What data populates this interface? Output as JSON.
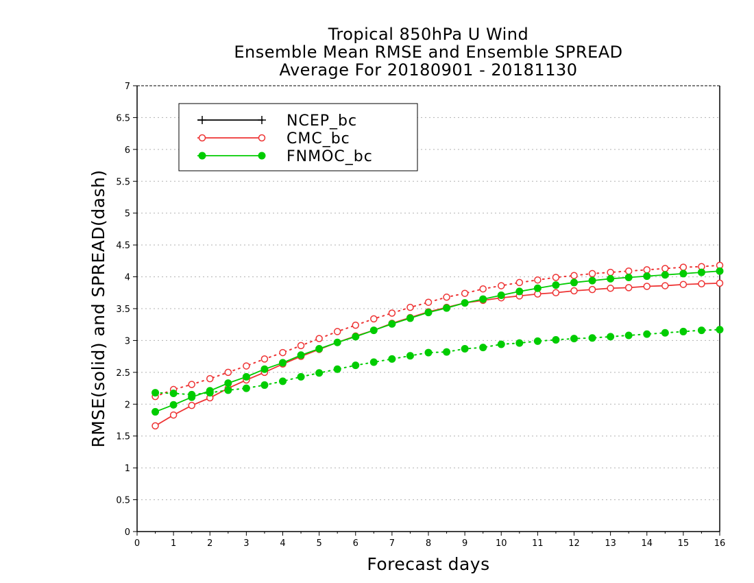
{
  "chart_data": {
    "type": "line",
    "title": [
      "Tropical 850hPa U Wind",
      "Ensemble Mean RMSE and Ensemble SPREAD",
      "Average For 20180901 - 20181130"
    ],
    "xlabel": "Forecast days",
    "ylabel": "RMSE(solid) and SPREAD(dash)",
    "xlim": [
      0,
      16
    ],
    "ylim": [
      0,
      7
    ],
    "xticks": [
      0,
      1,
      2,
      3,
      4,
      5,
      6,
      7,
      8,
      9,
      10,
      11,
      12,
      13,
      14,
      15,
      16
    ],
    "yticks": [
      0,
      0.5,
      1,
      1.5,
      2,
      2.5,
      3,
      3.5,
      4,
      4.5,
      5,
      5.5,
      6,
      6.5,
      7
    ],
    "ytick_labels": [
      "0",
      "0.5",
      "1",
      "1.5",
      "2",
      "2.5",
      "3",
      "3.5",
      "4",
      "4.5",
      "5",
      "5.5",
      "6",
      "6.5",
      "7"
    ],
    "grid": true,
    "legend_position": "top-left",
    "x": [
      0.5,
      1,
      1.5,
      2,
      2.5,
      3,
      3.5,
      4,
      4.5,
      5,
      5.5,
      6,
      6.5,
      7,
      7.5,
      8,
      8.5,
      9,
      9.5,
      10,
      10.5,
      11,
      11.5,
      12,
      12.5,
      13,
      13.5,
      14,
      14.5,
      15,
      15.5,
      16
    ],
    "series": [
      {
        "name": "NCEP_bc",
        "color": "#000000",
        "marker": "plus",
        "rmse": null,
        "spread": null
      },
      {
        "name": "CMC_bc",
        "color": "#ee3333",
        "marker": "open-circle",
        "rmse": [
          1.66,
          1.83,
          1.98,
          2.1,
          2.25,
          2.38,
          2.5,
          2.63,
          2.75,
          2.86,
          2.97,
          3.07,
          3.16,
          3.27,
          3.36,
          3.45,
          3.52,
          3.59,
          3.63,
          3.67,
          3.7,
          3.73,
          3.75,
          3.78,
          3.8,
          3.82,
          3.83,
          3.85,
          3.86,
          3.88,
          3.89,
          3.9
        ],
        "spread": [
          2.12,
          2.23,
          2.31,
          2.4,
          2.5,
          2.6,
          2.71,
          2.81,
          2.92,
          3.03,
          3.14,
          3.24,
          3.34,
          3.43,
          3.52,
          3.6,
          3.68,
          3.74,
          3.81,
          3.86,
          3.91,
          3.95,
          3.99,
          4.02,
          4.05,
          4.07,
          4.09,
          4.11,
          4.13,
          4.15,
          4.16,
          4.18
        ]
      },
      {
        "name": "FNMOC_bc",
        "color": "#00cc00",
        "marker": "filled-circle",
        "rmse": [
          1.88,
          1.99,
          2.11,
          2.21,
          2.33,
          2.43,
          2.55,
          2.65,
          2.77,
          2.87,
          2.97,
          3.06,
          3.16,
          3.26,
          3.35,
          3.44,
          3.51,
          3.59,
          3.65,
          3.71,
          3.77,
          3.82,
          3.87,
          3.91,
          3.94,
          3.97,
          3.99,
          4.01,
          4.03,
          4.05,
          4.07,
          4.09
        ],
        "spread": [
          2.18,
          2.17,
          2.15,
          2.18,
          2.22,
          2.25,
          2.3,
          2.36,
          2.43,
          2.49,
          2.55,
          2.61,
          2.66,
          2.71,
          2.76,
          2.81,
          2.82,
          2.87,
          2.89,
          2.94,
          2.96,
          2.99,
          3.01,
          3.03,
          3.04,
          3.06,
          3.08,
          3.1,
          3.12,
          3.14,
          3.16,
          3.17
        ]
      }
    ]
  }
}
